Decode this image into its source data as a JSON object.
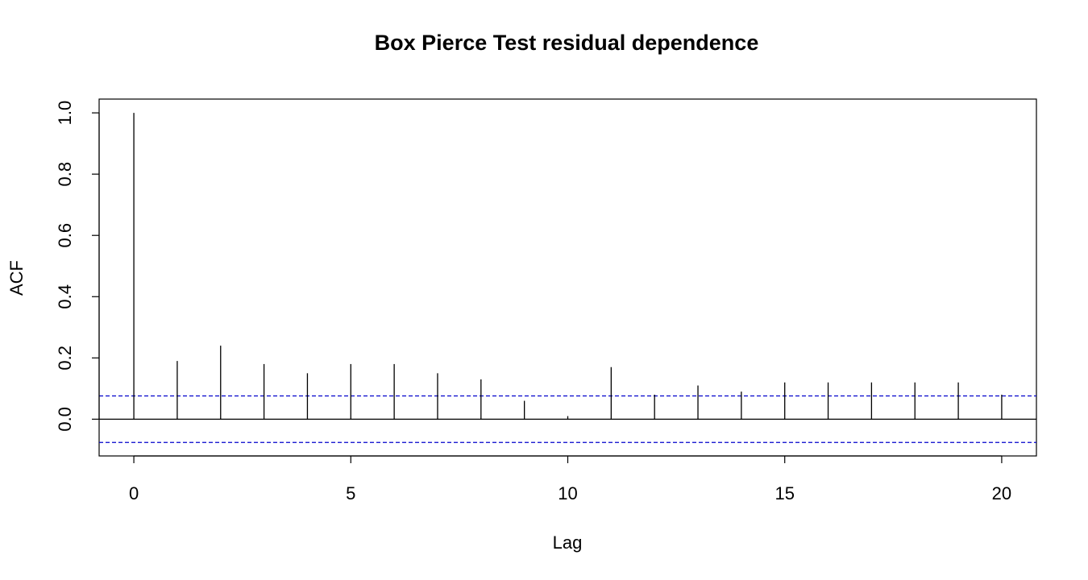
{
  "chart_data": {
    "type": "bar",
    "title": "Box Pierce Test residual dependence",
    "xlabel": "Lag",
    "ylabel": "ACF",
    "x": [
      0,
      1,
      2,
      3,
      4,
      5,
      6,
      7,
      8,
      9,
      10,
      11,
      12,
      13,
      14,
      15,
      16,
      17,
      18,
      19,
      20
    ],
    "values": [
      1.0,
      0.19,
      0.24,
      0.18,
      0.15,
      0.18,
      0.18,
      0.15,
      0.13,
      0.06,
      0.01,
      0.17,
      0.08,
      0.11,
      0.09,
      0.12,
      0.12,
      0.12,
      0.12,
      0.12,
      0.08
    ],
    "confidence_bound": 0.076,
    "xlim": [
      -0.8,
      20.8
    ],
    "ylim": [
      -0.12,
      1.045
    ],
    "x_ticks": [
      0,
      5,
      10,
      15,
      20
    ],
    "x_tick_labels": [
      "0",
      "5",
      "10",
      "15",
      "20"
    ],
    "y_ticks": [
      0.0,
      0.2,
      0.4,
      0.6,
      0.8,
      1.0
    ],
    "y_tick_labels": [
      "0.0",
      "0.2",
      "0.4",
      "0.6",
      "0.8",
      "1.0"
    ],
    "grid": false,
    "colors": {
      "spike": "#000000",
      "zero_line": "#000000",
      "confidence_line": "#0000cc"
    }
  }
}
